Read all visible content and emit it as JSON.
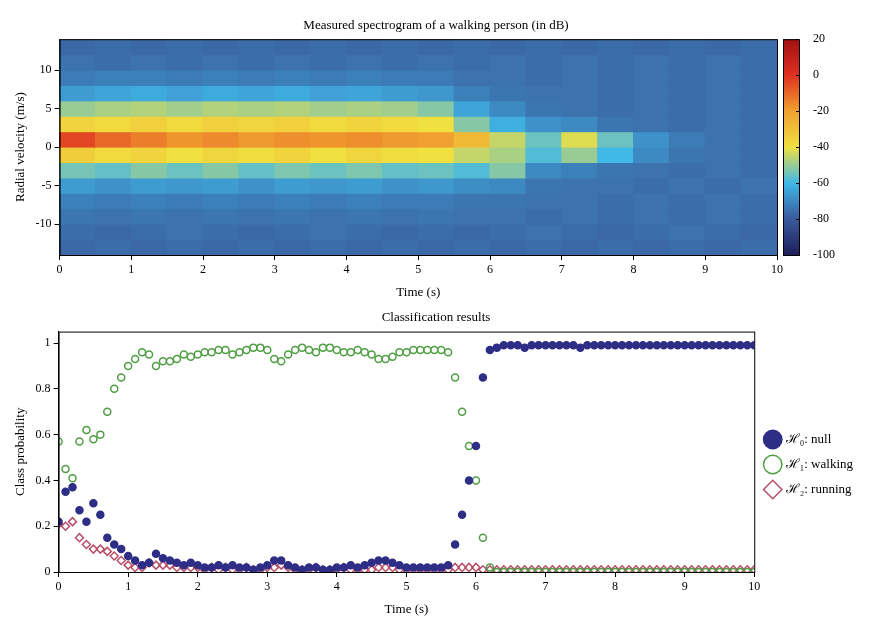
{
  "chart_data": [
    {
      "type": "heatmap",
      "title": "Measured spectrogram of a walking person (in dB)",
      "x_label": "Time (s)",
      "y_label": "Radial velocity (m/s)",
      "x": [
        0.25,
        0.75,
        1.25,
        1.75,
        2.25,
        2.75,
        3.25,
        3.75,
        4.25,
        4.75,
        5.25,
        5.75,
        6.25,
        6.75,
        7.25,
        7.75,
        8.25,
        8.75,
        9.25,
        9.75
      ],
      "y": [
        -13,
        -11,
        -9,
        -7,
        -5,
        -3,
        -1,
        1,
        3,
        5,
        7,
        9,
        11,
        13
      ],
      "values": [
        [
          -77,
          -76,
          -77,
          -76,
          -77,
          -76,
          -77,
          -76,
          -77,
          -76,
          -77,
          -76,
          -77,
          -76,
          -77,
          -76,
          -77,
          -76,
          -77,
          -76
        ],
        [
          -76,
          -77,
          -76,
          -75,
          -76,
          -77,
          -76,
          -75,
          -76,
          -77,
          -76,
          -77,
          -76,
          -75,
          -76,
          -77,
          -76,
          -75,
          -76,
          -77
        ],
        [
          -74,
          -75,
          -74,
          -75,
          -74,
          -75,
          -74,
          -75,
          -74,
          -75,
          -74,
          -75,
          -75,
          -76,
          -75,
          -76,
          -75,
          -76,
          -75,
          -76
        ],
        [
          -72,
          -73,
          -72,
          -73,
          -72,
          -73,
          -72,
          -73,
          -72,
          -73,
          -73,
          -74,
          -74,
          -75,
          -75,
          -76,
          -75,
          -76,
          -75,
          -76
        ],
        [
          -66,
          -68,
          -66,
          -67,
          -66,
          -68,
          -66,
          -67,
          -66,
          -68,
          -67,
          -69,
          -70,
          -74,
          -75,
          -75,
          -76,
          -75,
          -76,
          -75
        ],
        [
          -54,
          -56,
          -52,
          -55,
          -52,
          -56,
          -53,
          -55,
          -53,
          -56,
          -55,
          -58,
          -52,
          -70,
          -72,
          -74,
          -75,
          -76,
          -75,
          -76
        ],
        [
          -34,
          -38,
          -36,
          -40,
          -37,
          -39,
          -36,
          -40,
          -37,
          -39,
          -40,
          -45,
          -48,
          -58,
          -50,
          -60,
          -70,
          -74,
          -75,
          -76
        ],
        [
          -4,
          -10,
          -14,
          -18,
          -16,
          -19,
          -17,
          -18,
          -17,
          -19,
          -20,
          -28,
          -45,
          -55,
          -42,
          -55,
          -68,
          -73,
          -75,
          -76
        ],
        [
          -36,
          -38,
          -35,
          -38,
          -35,
          -37,
          -35,
          -38,
          -36,
          -38,
          -40,
          -52,
          -62,
          -68,
          -70,
          -74,
          -75,
          -76,
          -75,
          -76
        ],
        [
          -50,
          -48,
          -47,
          -49,
          -47,
          -48,
          -47,
          -49,
          -48,
          -49,
          -52,
          -64,
          -70,
          -74,
          -75,
          -76,
          -75,
          -76,
          -75,
          -76
        ],
        [
          -66,
          -64,
          -63,
          -65,
          -63,
          -64,
          -63,
          -65,
          -64,
          -66,
          -67,
          -72,
          -74,
          -75,
          -75,
          -76,
          -75,
          -76,
          -75,
          -76
        ],
        [
          -73,
          -72,
          -72,
          -73,
          -72,
          -73,
          -72,
          -73,
          -72,
          -73,
          -73,
          -75,
          -75,
          -76,
          -75,
          -76,
          -75,
          -76,
          -75,
          -76
        ],
        [
          -75,
          -76,
          -75,
          -76,
          -75,
          -76,
          -75,
          -76,
          -75,
          -76,
          -75,
          -76,
          -75,
          -76,
          -75,
          -76,
          -75,
          -76,
          -75,
          -76
        ],
        [
          -77,
          -76,
          -77,
          -76,
          -77,
          -76,
          -77,
          -76,
          -77,
          -76,
          -77,
          -76,
          -77,
          -76,
          -77,
          -76,
          -77,
          -76,
          -77,
          -76
        ]
      ],
      "xlim": [
        0,
        10
      ],
      "xticks": [
        0,
        1,
        2,
        3,
        4,
        5,
        6,
        7,
        8,
        9,
        10
      ],
      "ylim": [
        -14,
        14
      ],
      "yticks": [
        -10,
        -5,
        0,
        5,
        10
      ],
      "color_range": [
        -100,
        20
      ],
      "color_ticks": [
        -100,
        -80,
        -60,
        -40,
        -20,
        0,
        20
      ],
      "grid": false
    },
    {
      "type": "scatter",
      "title": "Classification results",
      "x_label": "Time (s)",
      "y_label": "Class probability",
      "x": [
        0,
        0.1,
        0.2,
        0.3,
        0.4,
        0.5,
        0.6,
        0.7,
        0.8,
        0.9,
        1,
        1.1,
        1.2,
        1.3,
        1.4,
        1.5,
        1.6,
        1.7,
        1.8,
        1.9,
        2,
        2.1,
        2.2,
        2.3,
        2.4,
        2.5,
        2.6,
        2.7,
        2.8,
        2.9,
        3,
        3.1,
        3.2,
        3.3,
        3.4,
        3.5,
        3.6,
        3.7,
        3.8,
        3.9,
        4,
        4.1,
        4.2,
        4.3,
        4.4,
        4.5,
        4.6,
        4.7,
        4.8,
        4.9,
        5,
        5.1,
        5.2,
        5.3,
        5.4,
        5.5,
        5.6,
        5.7,
        5.8,
        5.9,
        6,
        6.1,
        6.2,
        6.3,
        6.4,
        6.5,
        6.6,
        6.7,
        6.8,
        6.9,
        7,
        7.1,
        7.2,
        7.3,
        7.4,
        7.5,
        7.6,
        7.7,
        7.8,
        7.9,
        8,
        8.1,
        8.2,
        8.3,
        8.4,
        8.5,
        8.6,
        8.7,
        8.8,
        8.9,
        9,
        9.1,
        9.2,
        9.3,
        9.4,
        9.5,
        9.6,
        9.7,
        9.8,
        9.9,
        10
      ],
      "series": [
        {
          "name": "ℋ₀: null",
          "color": "#2e2e86",
          "marker": "circle_filled",
          "values": [
            0.22,
            0.35,
            0.37,
            0.27,
            0.22,
            0.3,
            0.25,
            0.15,
            0.12,
            0.1,
            0.07,
            0.05,
            0.03,
            0.04,
            0.08,
            0.06,
            0.05,
            0.04,
            0.03,
            0.04,
            0.03,
            0.02,
            0.02,
            0.03,
            0.02,
            0.03,
            0.02,
            0.02,
            0.01,
            0.02,
            0.03,
            0.05,
            0.05,
            0.03,
            0.02,
            0.01,
            0.02,
            0.02,
            0.01,
            0.01,
            0.02,
            0.02,
            0.03,
            0.02,
            0.03,
            0.04,
            0.05,
            0.05,
            0.04,
            0.03,
            0.02,
            0.02,
            0.02,
            0.02,
            0.02,
            0.02,
            0.03,
            0.12,
            0.25,
            0.4,
            0.55,
            0.85,
            0.97,
            0.98,
            0.99,
            0.99,
            0.99,
            0.98,
            0.99,
            0.99,
            0.99,
            0.99,
            0.99,
            0.99,
            0.99,
            0.98,
            0.99,
            0.99,
            0.99,
            0.99,
            0.99,
            0.99,
            0.99,
            0.99,
            0.99,
            0.99,
            0.99,
            0.99,
            0.99,
            0.99,
            0.99,
            0.99,
            0.99,
            0.99,
            0.99,
            0.99,
            0.99,
            0.99,
            0.99,
            0.99,
            0.99
          ]
        },
        {
          "name": "ℋ₁: walking",
          "color": "#4f9e43",
          "marker": "circle_open",
          "values": [
            0.57,
            0.45,
            0.41,
            0.57,
            0.62,
            0.58,
            0.6,
            0.7,
            0.8,
            0.85,
            0.9,
            0.93,
            0.96,
            0.95,
            0.9,
            0.92,
            0.92,
            0.93,
            0.95,
            0.94,
            0.95,
            0.96,
            0.96,
            0.97,
            0.97,
            0.95,
            0.96,
            0.97,
            0.98,
            0.98,
            0.97,
            0.93,
            0.92,
            0.95,
            0.97,
            0.98,
            0.97,
            0.96,
            0.98,
            0.98,
            0.97,
            0.96,
            0.96,
            0.97,
            0.96,
            0.95,
            0.93,
            0.93,
            0.94,
            0.96,
            0.96,
            0.97,
            0.97,
            0.97,
            0.97,
            0.97,
            0.96,
            0.85,
            0.7,
            0.55,
            0.4,
            0.15,
            0.02,
            0,
            0,
            0,
            0,
            0,
            0,
            0,
            0,
            0,
            0,
            0,
            0,
            0,
            0,
            0,
            0,
            0,
            0,
            0,
            0,
            0,
            0,
            0,
            0,
            0,
            0,
            0,
            0,
            0,
            0,
            0,
            0,
            0,
            0,
            0,
            0,
            0,
            0
          ]
        },
        {
          "name": "ℋ₂: running",
          "color": "#b8506a",
          "marker": "diamond_open",
          "values": [
            0.21,
            0.2,
            0.22,
            0.15,
            0.12,
            0.1,
            0.1,
            0.09,
            0.07,
            0.05,
            0.03,
            0.02,
            0.02,
            0.04,
            0.03,
            0.03,
            0.03,
            0.02,
            0.02,
            0.02,
            0.02,
            0.01,
            0.02,
            0.01,
            0.02,
            0.01,
            0.01,
            0.02,
            0.01,
            0.01,
            0.02,
            0.02,
            0.03,
            0.02,
            0.01,
            0.01,
            0.01,
            0.02,
            0.01,
            0.01,
            0.01,
            0.02,
            0.01,
            0.01,
            0.01,
            0.01,
            0.02,
            0.02,
            0.02,
            0.01,
            0.01,
            0.01,
            0.01,
            0.01,
            0.01,
            0.01,
            0.01,
            0.02,
            0.02,
            0.02,
            0.02,
            0.01,
            0.01,
            0.01,
            0.01,
            0.01,
            0.01,
            0.01,
            0.01,
            0.01,
            0.01,
            0.01,
            0.01,
            0.01,
            0.01,
            0.01,
            0.01,
            0.01,
            0.01,
            0.01,
            0.01,
            0.01,
            0.01,
            0.01,
            0.01,
            0.01,
            0.01,
            0.01,
            0.01,
            0.01,
            0.01,
            0.01,
            0.01,
            0.01,
            0.01,
            0.01,
            0.01,
            0.01,
            0.01,
            0.01,
            0.01
          ]
        }
      ],
      "xlim": [
        0,
        10
      ],
      "xticks": [
        0,
        1,
        2,
        3,
        4,
        5,
        6,
        7,
        8,
        9,
        10
      ],
      "ylim": [
        0,
        1.05
      ],
      "yticks": [
        0,
        0.2,
        0.4,
        0.6,
        0.8,
        1
      ],
      "legend": "right",
      "grid": false
    }
  ]
}
